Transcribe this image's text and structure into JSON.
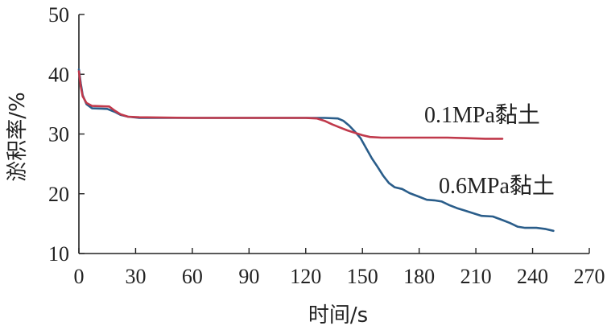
{
  "chart_data": {
    "type": "line",
    "title": "",
    "xlabel": "时间/s",
    "ylabel": "淤积率/%",
    "xlim": [
      0,
      270
    ],
    "ylim": [
      10,
      50
    ],
    "xticks": [
      0,
      30,
      60,
      90,
      120,
      150,
      180,
      210,
      240,
      270
    ],
    "yticks": [
      10,
      20,
      30,
      40,
      50
    ],
    "x_tick_labels": [
      "0",
      "30",
      "60",
      "90",
      "120",
      "150",
      "180",
      "210",
      "240",
      "270"
    ],
    "y_tick_labels": [
      "10",
      "20",
      "30",
      "40",
      "50"
    ],
    "grid": false,
    "series": [
      {
        "name": "0.6MPa黏土",
        "color": "#2a5d8a",
        "points": [
          [
            0,
            40.8
          ],
          [
            1,
            38.5
          ],
          [
            2,
            36.5
          ],
          [
            4,
            35.0
          ],
          [
            7,
            34.3
          ],
          [
            15,
            34.2
          ],
          [
            19,
            33.7
          ],
          [
            22,
            33.2
          ],
          [
            26,
            32.9
          ],
          [
            32,
            32.7
          ],
          [
            60,
            32.7
          ],
          [
            90,
            32.7
          ],
          [
            120,
            32.7
          ],
          [
            130,
            32.7
          ],
          [
            137,
            32.6
          ],
          [
            140,
            32.2
          ],
          [
            143,
            31.4
          ],
          [
            146,
            30.4
          ],
          [
            149,
            29.3
          ],
          [
            152,
            27.6
          ],
          [
            155,
            25.9
          ],
          [
            158,
            24.5
          ],
          [
            161,
            23.0
          ],
          [
            164,
            21.8
          ],
          [
            167,
            21.1
          ],
          [
            171,
            20.8
          ],
          [
            175,
            20.1
          ],
          [
            180,
            19.5
          ],
          [
            184,
            19.0
          ],
          [
            188,
            18.9
          ],
          [
            192,
            18.7
          ],
          [
            196,
            18.1
          ],
          [
            200,
            17.6
          ],
          [
            204,
            17.2
          ],
          [
            208,
            16.8
          ],
          [
            213,
            16.3
          ],
          [
            219,
            16.2
          ],
          [
            224,
            15.6
          ],
          [
            228,
            15.1
          ],
          [
            232,
            14.5
          ],
          [
            236,
            14.3
          ],
          [
            242,
            14.3
          ],
          [
            247,
            14.1
          ],
          [
            251,
            13.8
          ]
        ]
      },
      {
        "name": "0.1MPa黏土",
        "color": "#c0394b",
        "points": [
          [
            0,
            40.5
          ],
          [
            1,
            38.0
          ],
          [
            2,
            36.3
          ],
          [
            4,
            35.2
          ],
          [
            7,
            34.7
          ],
          [
            16,
            34.6
          ],
          [
            19,
            33.9
          ],
          [
            22,
            33.3
          ],
          [
            26,
            32.9
          ],
          [
            32,
            32.8
          ],
          [
            60,
            32.7
          ],
          [
            90,
            32.7
          ],
          [
            120,
            32.7
          ],
          [
            126,
            32.6
          ],
          [
            130,
            32.2
          ],
          [
            134,
            31.6
          ],
          [
            138,
            31.1
          ],
          [
            142,
            30.6
          ],
          [
            146,
            30.2
          ],
          [
            150,
            29.8
          ],
          [
            154,
            29.5
          ],
          [
            160,
            29.4
          ],
          [
            180,
            29.4
          ],
          [
            195,
            29.4
          ],
          [
            205,
            29.3
          ],
          [
            215,
            29.2
          ],
          [
            224,
            29.2
          ]
        ]
      }
    ]
  }
}
